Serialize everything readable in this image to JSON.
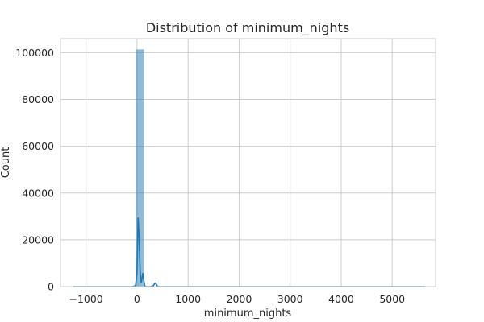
{
  "chart_data": {
    "type": "bar",
    "title": "Distribution of minimum_nights",
    "xlabel": "minimum_nights",
    "ylabel": "Count",
    "xlim": [
      -1500,
      5850
    ],
    "ylim": [
      0,
      106000
    ],
    "xticks": [
      -1000,
      0,
      1000,
      2000,
      3000,
      4000,
      5000
    ],
    "xtick_labels": [
      "−1000",
      "0",
      "1000",
      "2000",
      "3000",
      "4000",
      "5000"
    ],
    "yticks": [
      0,
      20000,
      40000,
      60000,
      80000,
      100000
    ],
    "ytick_labels": [
      "0",
      "20000",
      "40000",
      "60000",
      "80000",
      "100000"
    ],
    "grid": true,
    "histogram": {
      "bin_width": 167,
      "bins": [
        {
          "x0": -27,
          "x1": 140,
          "count": 101500
        },
        {
          "x0": 140,
          "x1": 307,
          "count": 150
        },
        {
          "x0": 307,
          "x1": 474,
          "count": 200
        }
      ]
    },
    "kde": {
      "x": [
        -1250,
        -200,
        -80,
        -30,
        0,
        20,
        40,
        60,
        80,
        100,
        115,
        130,
        150,
        175,
        200,
        260,
        320,
        345,
        365,
        385,
        410,
        450,
        600,
        1000,
        3000,
        5650
      ],
      "y": [
        0,
        0,
        0,
        400,
        6000,
        29500,
        22000,
        6500,
        1500,
        4000,
        5800,
        3000,
        300,
        0,
        0,
        0,
        300,
        1300,
        1500,
        500,
        80,
        0,
        0,
        0,
        0,
        0
      ]
    },
    "colors": {
      "bar": "#1f77b4",
      "kde": "#1f77b4",
      "grid": "#cccccc"
    }
  }
}
